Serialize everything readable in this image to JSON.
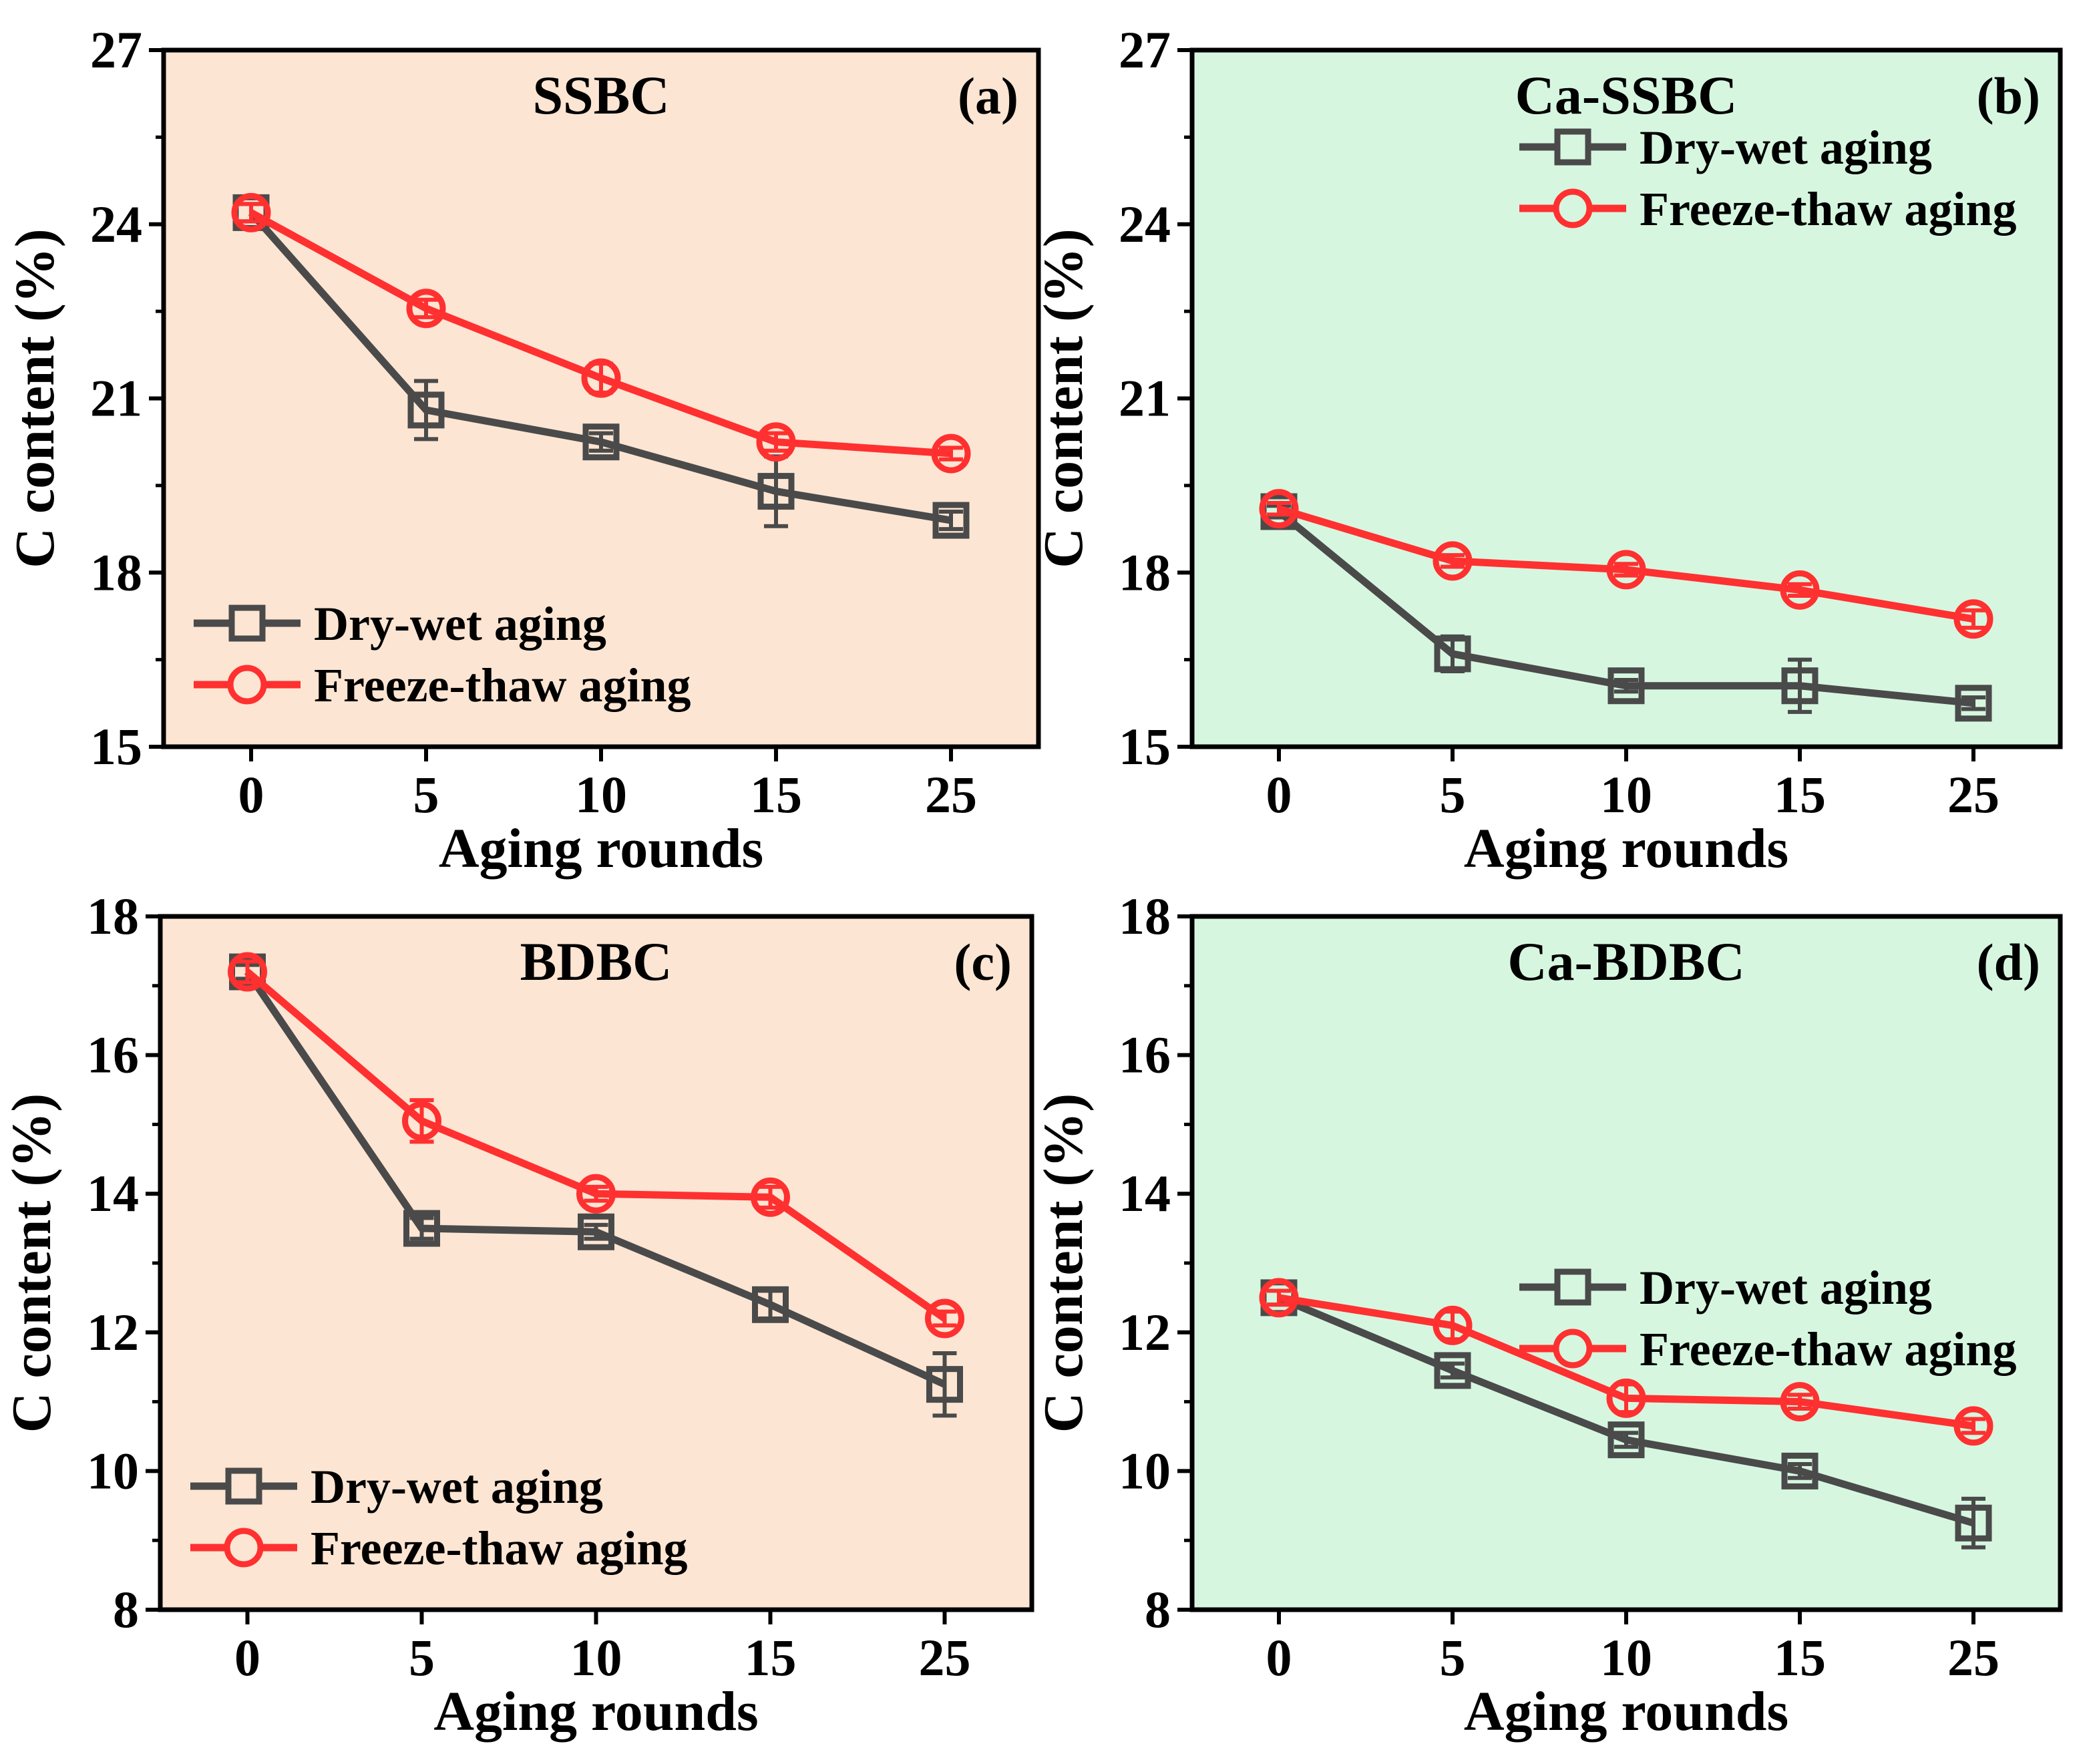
{
  "colors": {
    "dry_wet": "#4a4a4a",
    "freeze_thaw": "#ff3030",
    "bg_raw": "#fde5d3",
    "bg_ca": "#d6f6e0"
  },
  "chart_data": [
    {
      "type": "line",
      "title": "SSBC",
      "tag": "(a)",
      "xlabel": "Aging rounds",
      "ylabel": "C content (%)",
      "categories": [
        "0",
        "5",
        "10",
        "15",
        "25"
      ],
      "ylim": [
        15,
        27
      ],
      "yticks": [
        "15",
        "18",
        "21",
        "24",
        "27"
      ],
      "background": "bg_raw",
      "legend_position": "lower-left",
      "series": [
        {
          "name": "Dry-wet aging",
          "marker": "square",
          "color": "dry_wet",
          "values": [
            24.2,
            20.8,
            20.25,
            19.4,
            18.9
          ],
          "errors": [
            0.15,
            0.5,
            0.15,
            0.6,
            0.15
          ]
        },
        {
          "name": "Freeze-thaw aging",
          "marker": "circle",
          "color": "freeze_thaw",
          "values": [
            24.2,
            22.55,
            21.35,
            20.25,
            20.05
          ],
          "errors": [
            0.15,
            0.15,
            0.25,
            0.15,
            0.1
          ]
        }
      ]
    },
    {
      "type": "line",
      "title": "Ca-SSBC",
      "tag": "(b)",
      "xlabel": "Aging rounds",
      "ylabel": "C content (%)",
      "categories": [
        "0",
        "5",
        "10",
        "15",
        "25"
      ],
      "ylim": [
        15,
        27
      ],
      "yticks": [
        "15",
        "18",
        "21",
        "24",
        "27"
      ],
      "background": "bg_ca",
      "legend_position": "upper-right",
      "series": [
        {
          "name": "Dry-wet aging",
          "marker": "square",
          "color": "dry_wet",
          "values": [
            19.05,
            16.6,
            16.05,
            16.05,
            15.75
          ],
          "errors": [
            0.1,
            0.3,
            0.1,
            0.45,
            0.1
          ]
        },
        {
          "name": "Freeze-thaw aging",
          "marker": "circle",
          "color": "freeze_thaw",
          "values": [
            19.1,
            18.2,
            18.05,
            17.7,
            17.2
          ],
          "errors": [
            0.1,
            0.1,
            0.1,
            0.1,
            0.15
          ]
        }
      ]
    },
    {
      "type": "line",
      "title": "BDBC",
      "tag": "(c)",
      "xlabel": "Aging rounds",
      "ylabel": "C content (%)",
      "categories": [
        "0",
        "5",
        "10",
        "15",
        "25"
      ],
      "ylim": [
        8,
        18
      ],
      "yticks": [
        "8",
        "10",
        "12",
        "14",
        "16",
        "18"
      ],
      "background": "bg_raw",
      "legend_position": "lower-left",
      "series": [
        {
          "name": "Dry-wet aging",
          "marker": "square",
          "color": "dry_wet",
          "values": [
            17.2,
            13.5,
            13.45,
            12.4,
            11.25
          ],
          "errors": [
            0.1,
            0.15,
            0.1,
            0.2,
            0.45
          ]
        },
        {
          "name": "Freeze-thaw aging",
          "marker": "circle",
          "color": "freeze_thaw",
          "values": [
            17.2,
            15.05,
            14.0,
            13.95,
            12.2
          ],
          "errors": [
            0.15,
            0.3,
            0.1,
            0.15,
            0.1
          ]
        }
      ]
    },
    {
      "type": "line",
      "title": "Ca-BDBC",
      "tag": "(d)",
      "xlabel": "Aging rounds",
      "ylabel": "C content (%)",
      "categories": [
        "0",
        "5",
        "10",
        "15",
        "25"
      ],
      "ylim": [
        8,
        18
      ],
      "yticks": [
        "8",
        "10",
        "12",
        "14",
        "16",
        "18"
      ],
      "background": "bg_ca",
      "legend_position": "center-right",
      "series": [
        {
          "name": "Dry-wet aging",
          "marker": "square",
          "color": "dry_wet",
          "values": [
            12.5,
            11.45,
            10.45,
            10.0,
            9.25
          ],
          "errors": [
            0.1,
            0.1,
            0.1,
            0.1,
            0.35
          ]
        },
        {
          "name": "Freeze-thaw aging",
          "marker": "circle",
          "color": "freeze_thaw",
          "values": [
            12.5,
            12.1,
            11.05,
            11.0,
            10.65
          ],
          "errors": [
            0.1,
            0.2,
            0.2,
            0.1,
            0.1
          ]
        }
      ]
    }
  ]
}
